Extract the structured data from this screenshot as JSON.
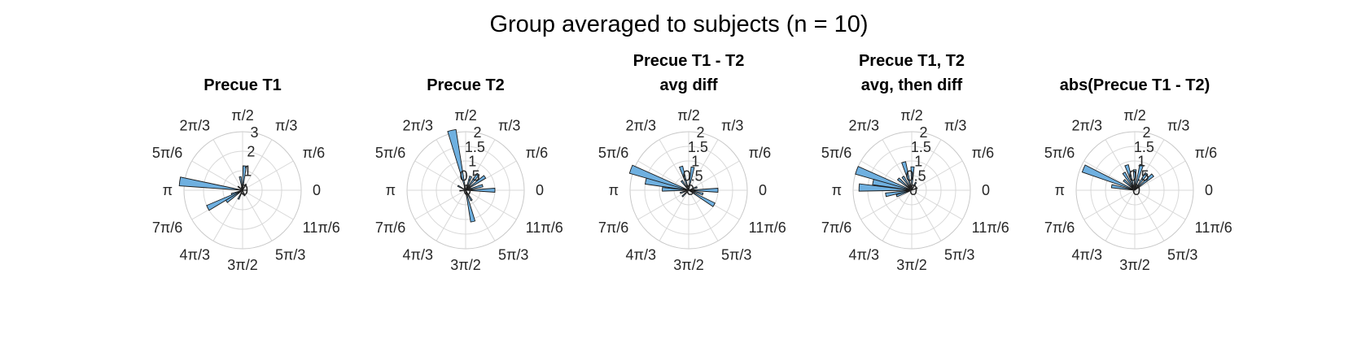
{
  "figure": {
    "title": "Group averaged to subjects (n = 10)"
  },
  "colors": {
    "bar_fill": "#6fb0e0",
    "bar_edge": "#1a1a1a",
    "grid": "#d8d8d8"
  },
  "chart_data": [
    {
      "type": "polar-histogram",
      "title": [
        "Precue T1"
      ],
      "theta_labels": [
        "0",
        "π/6",
        "π/3",
        "π/2",
        "2π/3",
        "5π/6",
        "π",
        "7π/6",
        "4π/3",
        "3π/2",
        "5π/3",
        "11π/6"
      ],
      "r_ticks": [
        "0",
        "1",
        "2",
        "3"
      ],
      "r_tick_values": [
        0,
        1,
        2,
        3
      ],
      "rlim": [
        0,
        3
      ],
      "bin_width_deg": 8,
      "bins": [
        {
          "angle_deg": 0,
          "value": 0.2
        },
        {
          "angle_deg": 60,
          "value": 0.35
        },
        {
          "angle_deg": 85,
          "value": 1.25
        },
        {
          "angle_deg": 100,
          "value": 0.7
        },
        {
          "angle_deg": 140,
          "value": 0.3
        },
        {
          "angle_deg": 172,
          "value": 3.25
        },
        {
          "angle_deg": 200,
          "value": 0.6
        },
        {
          "angle_deg": 207,
          "value": 2.0
        },
        {
          "angle_deg": 215,
          "value": 1.0
        },
        {
          "angle_deg": 245,
          "value": 0.5
        },
        {
          "angle_deg": 290,
          "value": 0.3
        }
      ]
    },
    {
      "type": "polar-histogram",
      "title": [
        "Precue T2"
      ],
      "theta_labels": [
        "0",
        "π/6",
        "π/3",
        "π/2",
        "2π/3",
        "5π/6",
        "π",
        "7π/6",
        "4π/3",
        "3π/2",
        "5π/3",
        "11π/6"
      ],
      "r_ticks": [
        "0",
        "0.5",
        "1",
        "1.5",
        "2"
      ],
      "r_tick_values": [
        0,
        0.5,
        1,
        1.5,
        2
      ],
      "rlim": [
        0,
        2
      ],
      "bin_width_deg": 8,
      "bins": [
        {
          "angle_deg": 0,
          "value": 1.0
        },
        {
          "angle_deg": 15,
          "value": 0.6
        },
        {
          "angle_deg": 35,
          "value": 0.8
        },
        {
          "angle_deg": 52,
          "value": 0.7
        },
        {
          "angle_deg": 70,
          "value": 0.5
        },
        {
          "angle_deg": 103,
          "value": 2.1
        },
        {
          "angle_deg": 150,
          "value": 0.3
        },
        {
          "angle_deg": 185,
          "value": 0.2
        },
        {
          "angle_deg": 283,
          "value": 1.1
        },
        {
          "angle_deg": 300,
          "value": 0.4
        }
      ]
    },
    {
      "type": "polar-histogram",
      "title": [
        "Precue T1 - T2",
        "avg diff"
      ],
      "theta_labels": [
        "0",
        "π/6",
        "π/3",
        "π/2",
        "2π/3",
        "5π/6",
        "π",
        "7π/6",
        "4π/3",
        "3π/2",
        "5π/3",
        "11π/6"
      ],
      "r_ticks": [
        "0",
        "0.5",
        "1",
        "1.5",
        "2"
      ],
      "r_tick_values": [
        0,
        0.5,
        1,
        1.5,
        2
      ],
      "rlim": [
        0,
        2
      ],
      "bin_width_deg": 8,
      "bins": [
        {
          "angle_deg": 0,
          "value": 1.0
        },
        {
          "angle_deg": 20,
          "value": 0.3
        },
        {
          "angle_deg": 80,
          "value": 0.8
        },
        {
          "angle_deg": 108,
          "value": 0.85
        },
        {
          "angle_deg": 127,
          "value": 0.4
        },
        {
          "angle_deg": 160,
          "value": 2.1
        },
        {
          "angle_deg": 168,
          "value": 1.5
        },
        {
          "angle_deg": 178,
          "value": 0.9
        },
        {
          "angle_deg": 198,
          "value": 0.3
        },
        {
          "angle_deg": 225,
          "value": 0.3
        },
        {
          "angle_deg": 330,
          "value": 1.0
        },
        {
          "angle_deg": 345,
          "value": 0.5
        }
      ]
    },
    {
      "type": "polar-histogram",
      "title": [
        "Precue T1, T2",
        "avg, then diff"
      ],
      "theta_labels": [
        "0",
        "π/6",
        "π/3",
        "π/2",
        "2π/3",
        "5π/6",
        "π",
        "7π/6",
        "4π/3",
        "3π/2",
        "5π/3",
        "11π/6"
      ],
      "r_ticks": [
        "0",
        "0.5",
        "1",
        "1.5",
        "2"
      ],
      "r_tick_values": [
        0,
        0.5,
        1,
        1.5,
        2
      ],
      "rlim": [
        0,
        2
      ],
      "bin_width_deg": 8,
      "bins": [
        {
          "angle_deg": 22,
          "value": 0.2
        },
        {
          "angle_deg": 62,
          "value": 0.3
        },
        {
          "angle_deg": 88,
          "value": 0.8
        },
        {
          "angle_deg": 106,
          "value": 1.0
        },
        {
          "angle_deg": 123,
          "value": 0.55
        },
        {
          "angle_deg": 140,
          "value": 0.6
        },
        {
          "angle_deg": 160,
          "value": 2.0
        },
        {
          "angle_deg": 168,
          "value": 1.35
        },
        {
          "angle_deg": 177,
          "value": 1.8
        },
        {
          "angle_deg": 190,
          "value": 0.9
        },
        {
          "angle_deg": 200,
          "value": 0.55
        }
      ]
    },
    {
      "type": "polar-histogram",
      "title": [
        "abs(Precue T1 - T2)"
      ],
      "theta_labels": [
        "0",
        "π/6",
        "π/3",
        "π/2",
        "2π/3",
        "5π/6",
        "π",
        "7π/6",
        "4π/3",
        "3π/2",
        "5π/3",
        "11π/6"
      ],
      "r_ticks": [
        "0",
        "0.5",
        "1",
        "1.5",
        "2"
      ],
      "r_tick_values": [
        0,
        0.5,
        1,
        1.5,
        2
      ],
      "rlim": [
        0,
        2
      ],
      "bin_width_deg": 8,
      "bins": [
        {
          "angle_deg": 40,
          "value": 0.8
        },
        {
          "angle_deg": 55,
          "value": 0.7
        },
        {
          "angle_deg": 75,
          "value": 0.9
        },
        {
          "angle_deg": 90,
          "value": 0.7
        },
        {
          "angle_deg": 108,
          "value": 0.9
        },
        {
          "angle_deg": 122,
          "value": 0.7
        },
        {
          "angle_deg": 137,
          "value": 0.5
        },
        {
          "angle_deg": 157,
          "value": 1.9
        },
        {
          "angle_deg": 170,
          "value": 0.8
        }
      ]
    }
  ]
}
